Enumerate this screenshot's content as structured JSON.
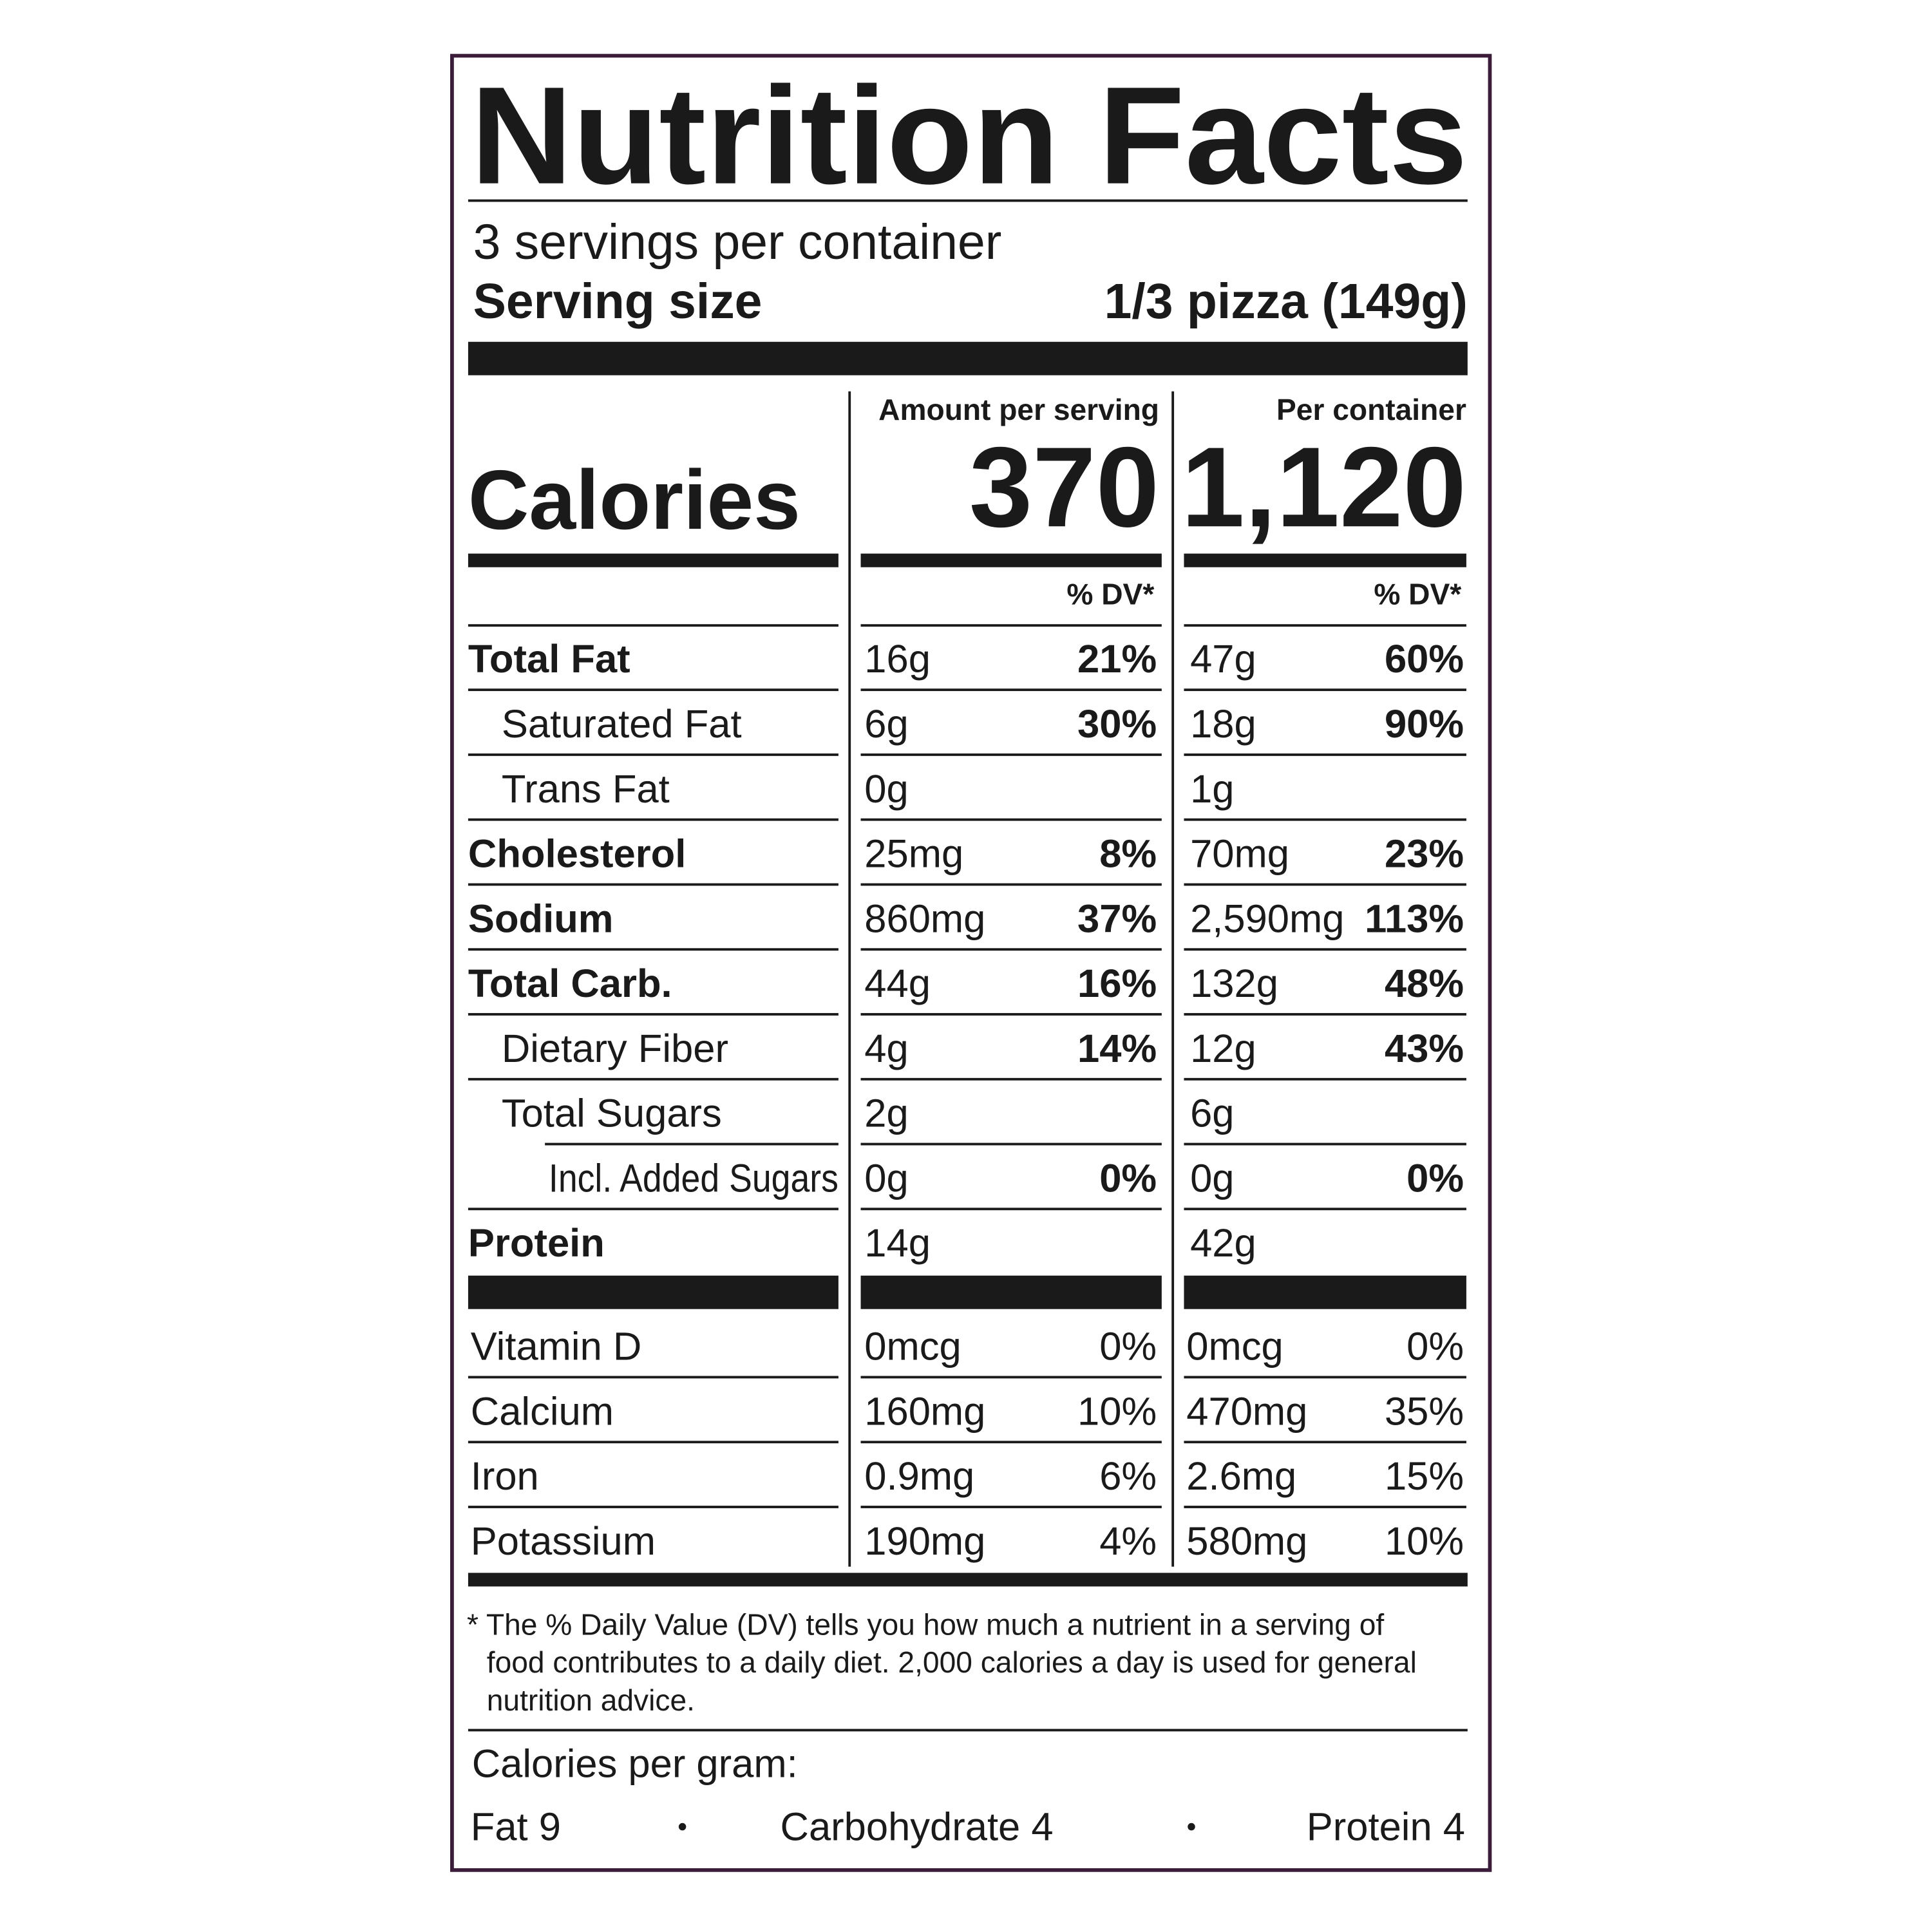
{
  "title": "Nutrition Facts",
  "servings": "3 servings per container",
  "serving_size": {
    "label": "Serving size",
    "value": "1/3 pizza (149g)"
  },
  "columns": {
    "per_serving": "Amount per serving",
    "per_container": "Per container",
    "dv": "% DV*"
  },
  "calories": {
    "label": "Calories",
    "per_serving": "370",
    "per_container": "1,120"
  },
  "nutrients": [
    {
      "name": "Total Fat",
      "level": 0,
      "serving_amount": "16g",
      "serving_dv": "21%",
      "container_amount": "47g",
      "container_dv": "60%"
    },
    {
      "name": "Saturated Fat",
      "level": 1,
      "serving_amount": "6g",
      "serving_dv": "30%",
      "container_amount": "18g",
      "container_dv": "90%"
    },
    {
      "name": "Trans Fat",
      "level": 1,
      "serving_amount": "0g",
      "serving_dv": null,
      "container_amount": "1g",
      "container_dv": null
    },
    {
      "name": "Cholesterol",
      "level": 0,
      "serving_amount": "25mg",
      "serving_dv": "8%",
      "container_amount": "70mg",
      "container_dv": "23%"
    },
    {
      "name": "Sodium",
      "level": 0,
      "serving_amount": "860mg",
      "serving_dv": "37%",
      "container_amount": "2,590mg",
      "container_dv": "113%"
    },
    {
      "name": "Total Carb.",
      "level": 0,
      "serving_amount": "44g",
      "serving_dv": "16%",
      "container_amount": "132g",
      "container_dv": "48%"
    },
    {
      "name": "Dietary Fiber",
      "level": 1,
      "serving_amount": "4g",
      "serving_dv": "14%",
      "container_amount": "12g",
      "container_dv": "43%"
    },
    {
      "name": "Total Sugars",
      "level": 1,
      "serving_amount": "2g",
      "serving_dv": null,
      "container_amount": "6g",
      "container_dv": null
    },
    {
      "name": "Incl. Added Sugars",
      "level": 2,
      "serving_amount": "0g",
      "serving_dv": "0%",
      "container_amount": "0g",
      "container_dv": "0%"
    },
    {
      "name": "Protein",
      "level": 0,
      "serving_amount": "14g",
      "serving_dv": null,
      "container_amount": "42g",
      "container_dv": null
    }
  ],
  "vitamins": [
    {
      "name": "Vitamin D",
      "serving_amount": "0mcg",
      "serving_dv": "0%",
      "container_amount": "0mcg",
      "container_dv": "0%"
    },
    {
      "name": "Calcium",
      "serving_amount": "160mg",
      "serving_dv": "10%",
      "container_amount": "470mg",
      "container_dv": "35%"
    },
    {
      "name": "Iron",
      "serving_amount": "0.9mg",
      "serving_dv": "6%",
      "container_amount": "2.6mg",
      "container_dv": "15%"
    },
    {
      "name": "Potassium",
      "serving_amount": "190mg",
      "serving_dv": "4%",
      "container_amount": "580mg",
      "container_dv": "10%"
    }
  ],
  "footnote": [
    "* The % Daily Value (DV) tells you how much a nutrient in a serving of",
    "food contributes to a daily diet. 2,000 calories a day is used for general",
    "nutrition advice."
  ],
  "calories_per_gram": {
    "title": "Calories per gram:",
    "items": [
      "Fat 9",
      "Carbohydrate 4",
      "Protein 4"
    ]
  }
}
